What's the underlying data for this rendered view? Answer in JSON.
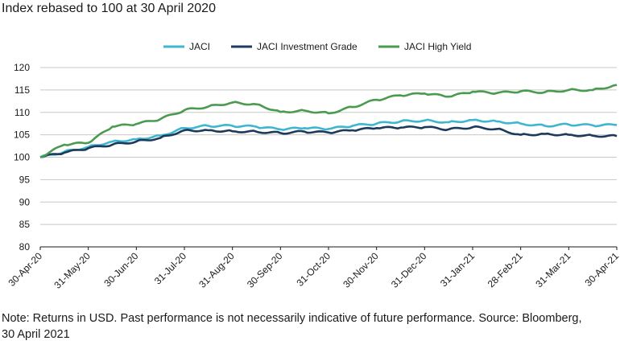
{
  "header": {
    "title": "Index rebased to 100 at 30 April 2020"
  },
  "footer": {
    "note": "Note: Returns in USD. Past performance is not necessarily indicative of future performance. Source: Bloomberg, 30 April 2021"
  },
  "chart_data": {
    "type": "line",
    "title": "Index rebased to 100 at 30 April 2020",
    "xlabel": "",
    "ylabel": "",
    "ylim": [
      80,
      120
    ],
    "yticks": [
      80,
      85,
      90,
      95,
      100,
      105,
      110,
      115,
      120
    ],
    "grid": true,
    "legend_position": "top-center",
    "x_tick_labels": [
      "30-Apr-20",
      "31-May-20",
      "30-Jun-20",
      "31-Jul-20",
      "31-Aug-20",
      "30-Sep-20",
      "31-Oct-20",
      "30-Nov-20",
      "31-Dec-20",
      "31-Jan-21",
      "28-Feb-21",
      "31-Mar-21",
      "30-Apr-21"
    ],
    "x": [
      "30-Apr-20",
      "15-May-20",
      "31-May-20",
      "15-Jun-20",
      "30-Jun-20",
      "15-Jul-20",
      "31-Jul-20",
      "15-Aug-20",
      "31-Aug-20",
      "15-Sep-20",
      "30-Sep-20",
      "15-Oct-20",
      "31-Oct-20",
      "15-Nov-20",
      "30-Nov-20",
      "15-Dec-20",
      "31-Dec-20",
      "15-Jan-21",
      "31-Jan-21",
      "15-Feb-21",
      "28-Feb-21",
      "15-Mar-21",
      "31-Mar-21",
      "15-Apr-21",
      "30-Apr-21"
    ],
    "series": [
      {
        "name": "JACI",
        "color": "#3fb6d0",
        "values": [
          100.0,
          101.2,
          102.3,
          103.5,
          104.0,
          104.8,
          106.5,
          107.0,
          107.0,
          106.8,
          106.2,
          106.5,
          106.3,
          107.0,
          107.5,
          108.0,
          108.2,
          107.8,
          108.3,
          108.0,
          107.5,
          107.0,
          107.3,
          107.1,
          107.2
        ]
      },
      {
        "name": "JACI Investment Grade",
        "color": "#1b3a5c",
        "values": [
          100.0,
          101.0,
          102.0,
          102.8,
          103.5,
          104.3,
          106.0,
          106.0,
          105.8,
          105.7,
          105.4,
          105.7,
          105.5,
          106.0,
          106.5,
          106.6,
          106.7,
          106.2,
          106.7,
          106.3,
          105.0,
          105.2,
          105.0,
          104.8,
          104.7
        ]
      },
      {
        "name": "JACI High Yield",
        "color": "#4a9a4f",
        "values": [
          100.0,
          102.8,
          103.2,
          106.8,
          107.4,
          108.5,
          110.5,
          111.3,
          112.2,
          111.8,
          110.1,
          110.4,
          109.8,
          111.2,
          112.8,
          113.8,
          114.2,
          113.5,
          114.6,
          114.3,
          114.7,
          114.5,
          115.0,
          115.0,
          116.1
        ]
      }
    ]
  }
}
